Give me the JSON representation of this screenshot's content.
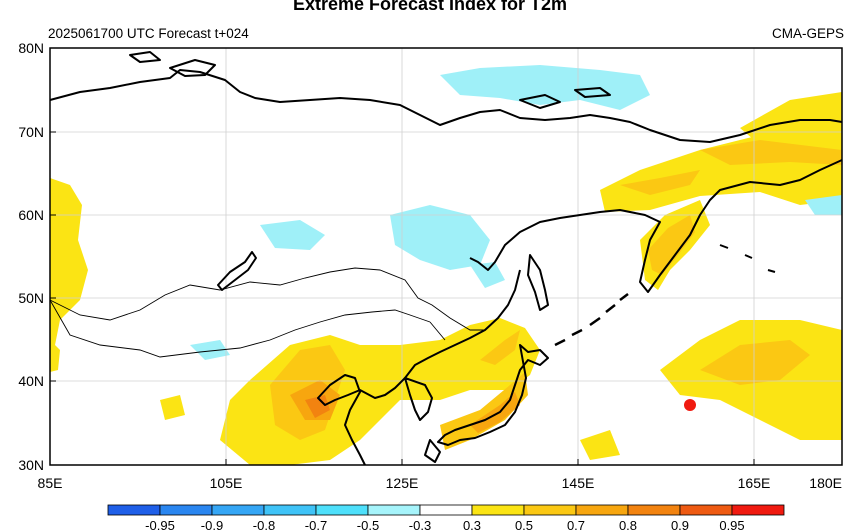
{
  "title": "Extreme Forecast Index for T2m",
  "subtitle_left": "2025061700 UTC Forecast t+024",
  "subtitle_right": "CMA-GEPS",
  "lat_labels": [
    "80N",
    "70N",
    "60N",
    "50N",
    "40N",
    "30N"
  ],
  "lon_labels": [
    "85E",
    "105E",
    "125E",
    "145E",
    "165E",
    "180E"
  ],
  "colorbar": {
    "labels": [
      "-0.95",
      "-0.9",
      "-0.8",
      "-0.7",
      "-0.5",
      "-0.3",
      "0.3",
      "0.5",
      "0.7",
      "0.8",
      "0.9",
      "0.95"
    ],
    "colors": [
      "#1f5fe8",
      "#2a86f0",
      "#35a6f5",
      "#3fc3f7",
      "#4ee0fb",
      "#a6f4fb",
      "#ffffff",
      "#fbe414",
      "#fbc813",
      "#f7a60f",
      "#f28310",
      "#ee5a12",
      "#f01a10"
    ]
  },
  "colors": {
    "warm_light": "#fbe414",
    "warm_mid": "#fbc813",
    "warm_strong": "#f7a60f",
    "warm_stronger": "#f28310",
    "cold_light": "#9ff0f8",
    "coast": "#000000",
    "grid": "#d0d0d0"
  }
}
